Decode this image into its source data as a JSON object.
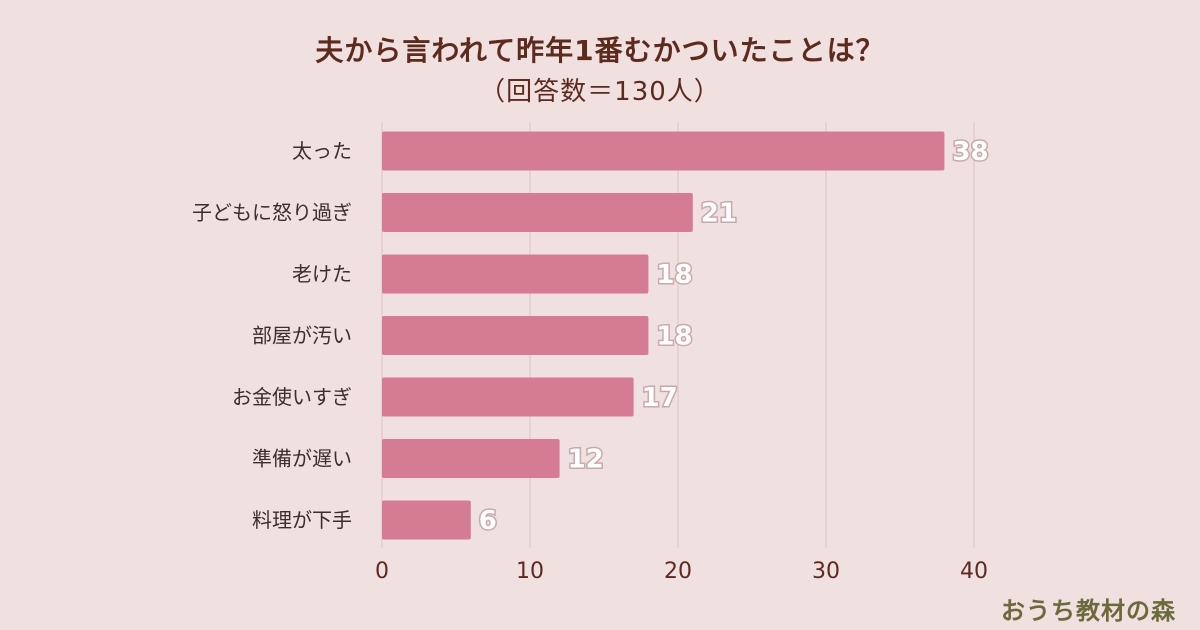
{
  "title": "夫から言われて昨年1番むかついたことは？",
  "subtitle": "（回答数＝130人）",
  "brand": "おうち教材の森",
  "colors": {
    "background": "#f0e0e0",
    "bar": "#d57b92",
    "grid": "#dcc3c4",
    "text": "#5c2b1e"
  },
  "chart_data": {
    "type": "bar",
    "orientation": "horizontal",
    "categories": [
      "太った",
      "子どもに怒り過ぎ",
      "老けた",
      "部屋が汚い",
      "お金使いすぎ",
      "準備が遅い",
      "料理が下手"
    ],
    "values": [
      38,
      21,
      18,
      18,
      17,
      12,
      6
    ],
    "xlim": [
      0,
      40
    ],
    "xticks": [
      0,
      10,
      20,
      30,
      40
    ],
    "grid": true,
    "data_labels": true
  }
}
